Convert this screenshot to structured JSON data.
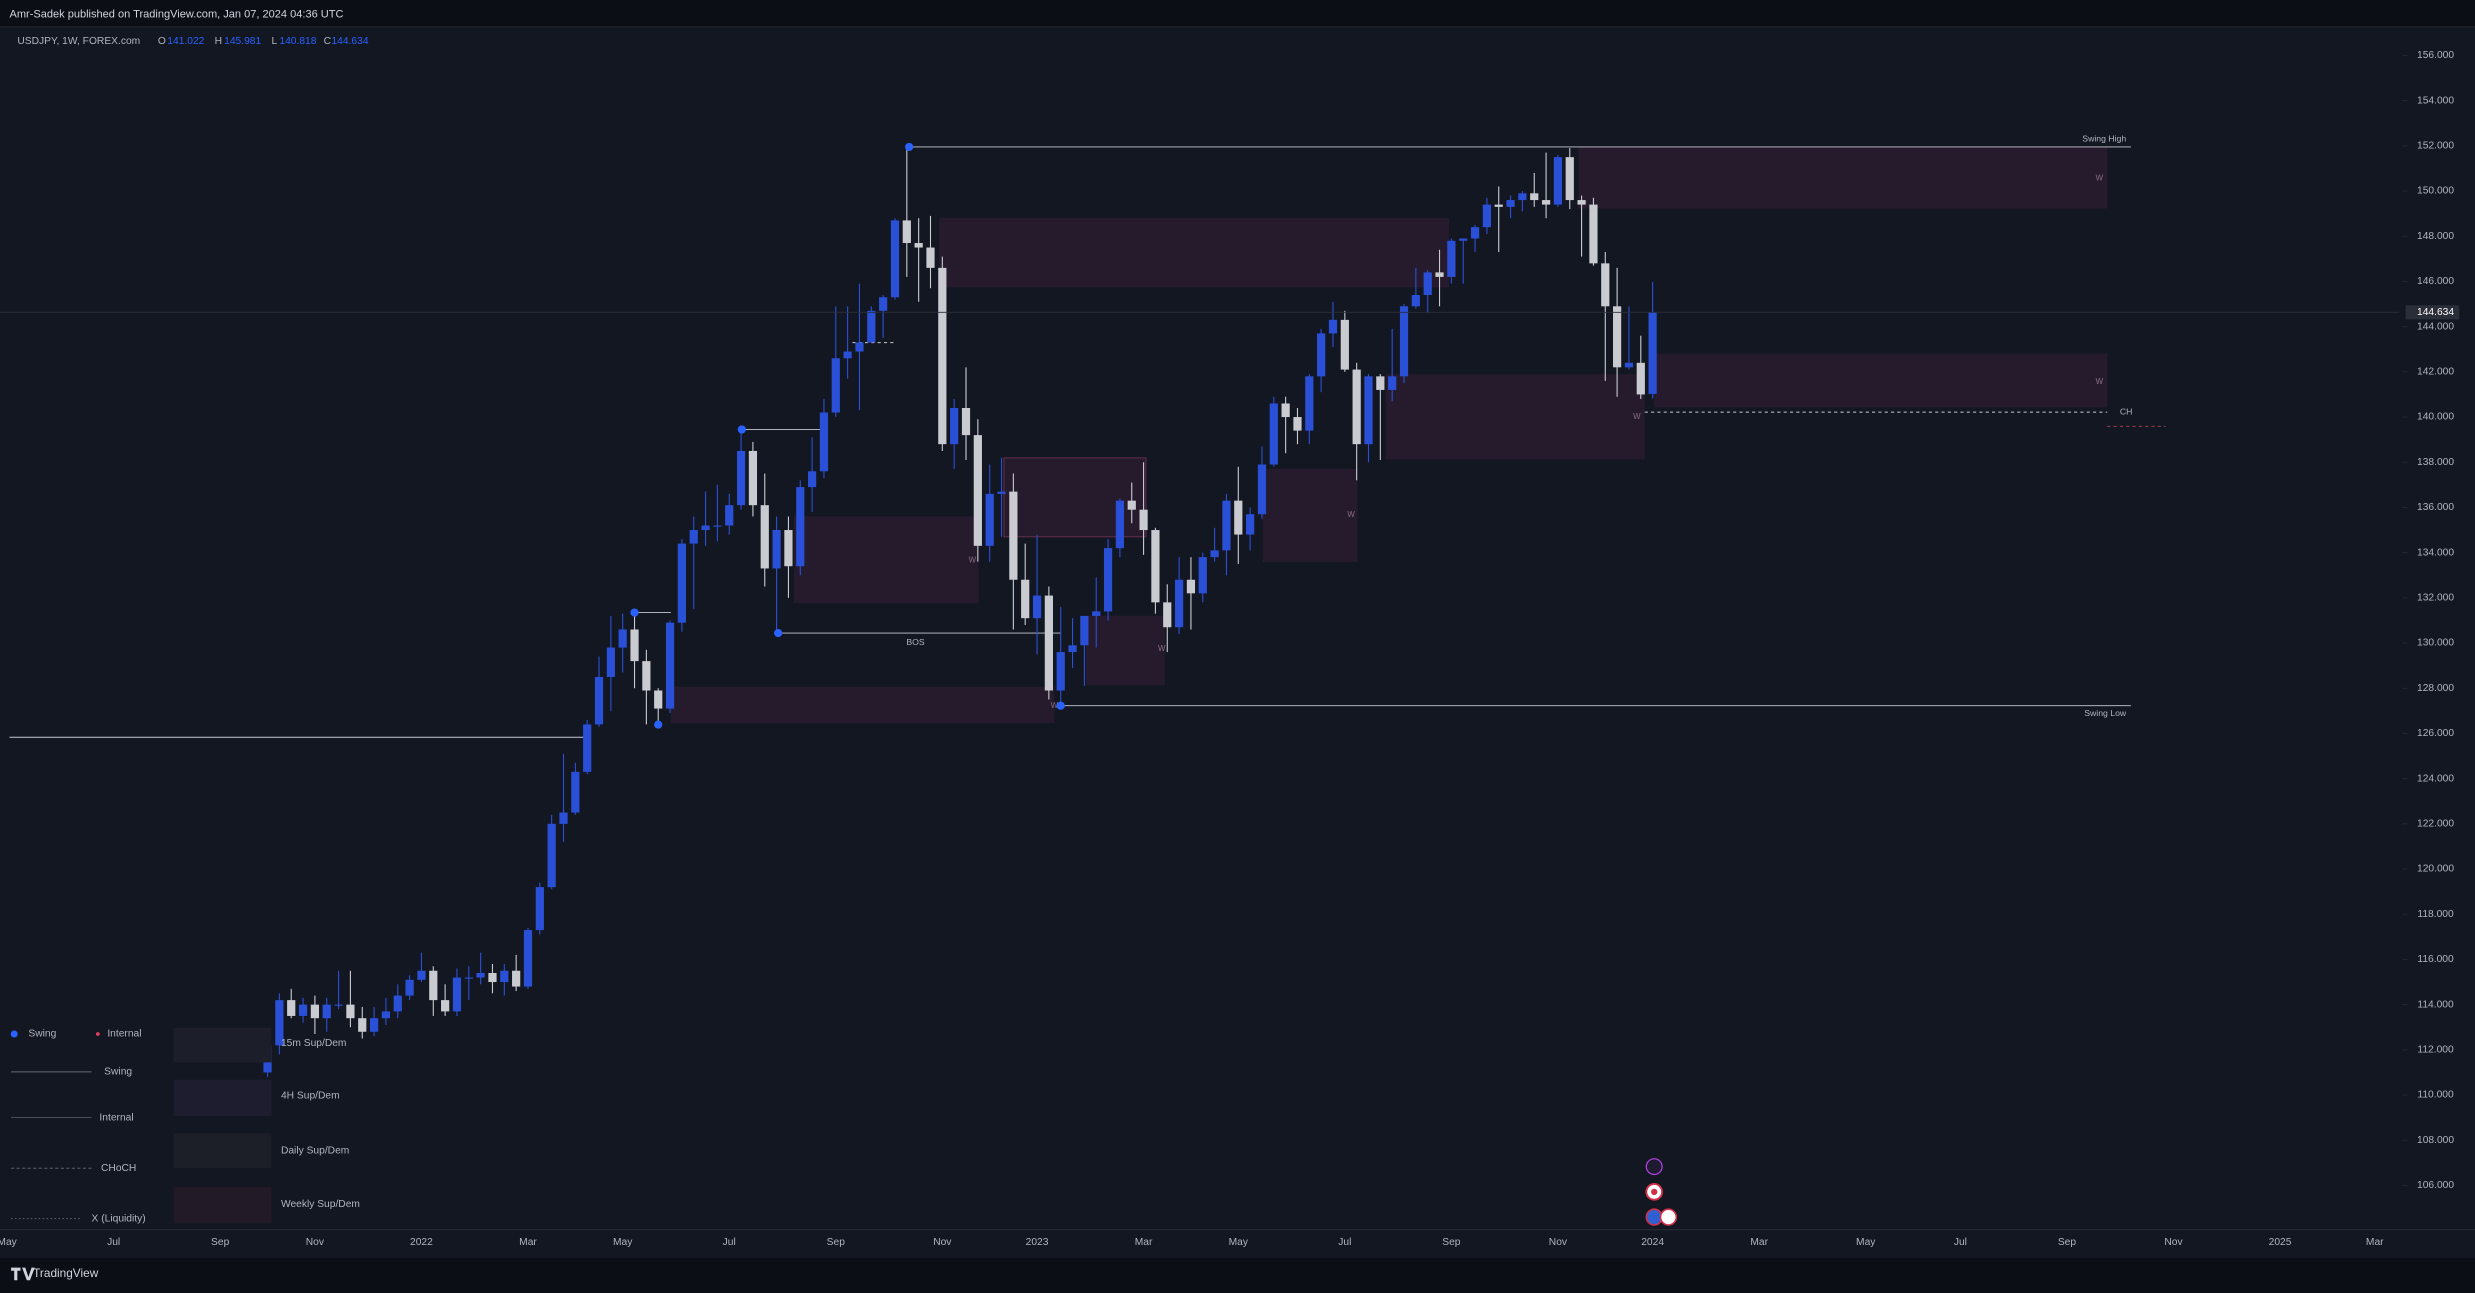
{
  "header": {
    "publisher": "Amr-Sadek published on TradingView.com, Jan 07, 2024 04:36 UTC",
    "symbol": "USDJPY, 1W, FOREX.com",
    "ohlc_labels": [
      "O",
      "H",
      "L",
      "C"
    ]
  },
  "chart_data": {
    "type": "candlestick",
    "up_color": "#2b50d8",
    "down_color": "#c9cbd1",
    "background": "#131722",
    "categories": [
      "May",
      null,
      null,
      null,
      null,
      null,
      null,
      null,
      null,
      "Jul",
      null,
      null,
      null,
      null,
      null,
      null,
      null,
      null,
      "Sep",
      null,
      null,
      null,
      null,
      null,
      null,
      null,
      "Nov",
      null,
      null,
      null,
      null,
      null,
      null,
      null,
      null,
      "2022",
      null,
      null,
      null,
      null,
      null,
      null,
      null,
      null,
      "Mar",
      null,
      null,
      null,
      null,
      null,
      null,
      null,
      "May",
      null,
      null,
      null,
      null,
      null,
      null,
      null,
      null,
      "Jul",
      null,
      null,
      null,
      null,
      null,
      null,
      null,
      null,
      "Sep",
      null,
      null,
      null,
      null,
      null,
      null,
      null,
      null,
      "Nov",
      null,
      null,
      null,
      null,
      null,
      null,
      null,
      "2023",
      null,
      null,
      null,
      null,
      null,
      null,
      null,
      null,
      "Mar",
      null,
      null,
      null,
      null,
      null,
      null,
      null,
      "May",
      null,
      null,
      null,
      null,
      null,
      null,
      null,
      null,
      "Jul",
      null,
      null,
      null,
      null,
      null,
      null,
      null,
      null,
      "Sep",
      null,
      null,
      null,
      null,
      null,
      null,
      null,
      null,
      "Nov",
      null,
      null,
      null,
      null,
      null,
      null,
      null,
      "2024",
      null,
      null,
      null,
      null,
      null,
      null,
      null,
      null,
      "Mar",
      null,
      null,
      null,
      null,
      null,
      null,
      null,
      null,
      "May",
      null,
      null,
      null,
      null,
      null,
      null,
      null,
      "Jul",
      null,
      null,
      null,
      null,
      null,
      null,
      null,
      null,
      "Sep",
      null,
      null,
      null,
      null,
      null,
      null,
      null,
      null,
      "Nov",
      null,
      null,
      null,
      null,
      null,
      null,
      null,
      null,
      "2025",
      null,
      null,
      null,
      null,
      null,
      null,
      null,
      "Mar",
      null
    ],
    "open": [
      null,
      null,
      null,
      null,
      null,
      null,
      null,
      null,
      null,
      null,
      null,
      null,
      null,
      null,
      null,
      null,
      null,
      null,
      null,
      null,
      null,
      null,
      111.0,
      112.2,
      114.2,
      113.5,
      114.0,
      113.4,
      114.0,
      114.0,
      113.4,
      112.8,
      113.4,
      113.7,
      114.4,
      115.1,
      115.5,
      114.2,
      113.7,
      115.2,
      115.2,
      115.4,
      115.0,
      115.5,
      114.8,
      117.3,
      119.2,
      122.0,
      122.5,
      124.3,
      126.4,
      128.5,
      129.8,
      130.6,
      129.2,
      127.9,
      127.1,
      130.9,
      134.4,
      135.0,
      135.2,
      135.2,
      136.1,
      138.5,
      136.1,
      133.3,
      135.0,
      133.4,
      136.9,
      137.6,
      140.2,
      142.6,
      142.9,
      143.3,
      144.7,
      145.3,
      148.7,
      147.7,
      147.5,
      146.6,
      138.8,
      140.4,
      139.2,
      134.3,
      136.6,
      136.7,
      132.8,
      131.1,
      132.1,
      127.9,
      129.6,
      129.9,
      131.2,
      131.4,
      134.2,
      136.3,
      135.9,
      135.0,
      131.8,
      130.7,
      132.8,
      132.2,
      133.8,
      134.1,
      136.3,
      134.8,
      135.7,
      137.9,
      140.6,
      140.0,
      139.4,
      141.8,
      143.7,
      144.3,
      142.1,
      138.8,
      141.8,
      141.2,
      141.8,
      144.9,
      145.4,
      146.4,
      146.2,
      147.8,
      147.9,
      148.4,
      149.4,
      149.3,
      149.6,
      149.9,
      149.6,
      149.4,
      151.5,
      149.6,
      149.4,
      146.8,
      144.9,
      142.2,
      142.4,
      141.022,
      null,
      null,
      null,
      null,
      null,
      null,
      null,
      null,
      null,
      null,
      null,
      null,
      null,
      null,
      null,
      null,
      null,
      null,
      null,
      null,
      null,
      null,
      null,
      null,
      null,
      null,
      null,
      null,
      null,
      null,
      null,
      null,
      null,
      null,
      null,
      null,
      null,
      null,
      null,
      null,
      null,
      null,
      null,
      null,
      null,
      null,
      null,
      null,
      null,
      null,
      null,
      null,
      null,
      null,
      null,
      null,
      null,
      null,
      null,
      null,
      null,
      null
    ],
    "high": [
      null,
      null,
      null,
      null,
      null,
      null,
      null,
      null,
      null,
      null,
      null,
      null,
      null,
      null,
      null,
      null,
      null,
      null,
      null,
      null,
      null,
      null,
      112.5,
      114.5,
      114.7,
      114.3,
      114.4,
      114.3,
      115.5,
      115.5,
      113.9,
      113.9,
      114.3,
      114.9,
      115.3,
      116.3,
      115.7,
      114.9,
      115.6,
      115.7,
      116.3,
      115.8,
      115.8,
      116.2,
      117.4,
      119.4,
      122.4,
      125.1,
      124.7,
      126.6,
      129.4,
      131.2,
      131.3,
      131.3,
      129.7,
      128.0,
      131.0,
      134.6,
      135.6,
      136.7,
      137.0,
      136.6,
      139.4,
      138.9,
      137.5,
      135.6,
      135.6,
      137.2,
      139.1,
      140.8,
      144.9,
      144.9,
      145.9,
      144.9,
      145.4,
      148.8,
      151.9,
      148.8,
      148.9,
      147.1,
      140.8,
      142.2,
      139.9,
      137.9,
      138.2,
      137.5,
      134.4,
      134.8,
      132.5,
      131.6,
      131.1,
      131.2,
      132.9,
      134.6,
      136.4,
      137.1,
      138.0,
      135.1,
      132.6,
      133.8,
      133.8,
      134.0,
      135.1,
      136.6,
      137.8,
      136.0,
      138.7,
      140.9,
      140.9,
      140.4,
      141.9,
      143.9,
      145.1,
      144.7,
      142.4,
      141.9,
      141.9,
      143.9,
      145.0,
      146.6,
      146.5,
      147.4,
      147.9,
      147.9,
      148.5,
      149.7,
      150.2,
      149.8,
      150.0,
      150.8,
      151.7,
      151.6,
      151.9,
      149.8,
      149.7,
      147.3,
      146.6,
      144.9,
      143.6,
      145.981,
      null,
      null,
      null,
      null,
      null,
      null,
      null,
      null,
      null,
      null,
      null,
      null,
      null,
      null,
      null,
      null,
      null,
      null,
      null,
      null,
      null,
      null,
      null,
      null,
      null,
      null,
      null,
      null,
      null,
      null,
      null,
      null,
      null,
      null,
      null,
      null,
      null,
      null,
      null,
      null,
      null,
      null,
      null,
      null,
      null,
      null,
      null,
      null,
      null,
      null,
      null,
      null,
      null,
      null,
      null,
      null,
      null,
      null,
      null,
      null,
      null,
      null
    ],
    "low": [
      null,
      null,
      null,
      null,
      null,
      null,
      null,
      null,
      null,
      null,
      null,
      null,
      null,
      null,
      null,
      null,
      null,
      null,
      null,
      null,
      null,
      null,
      110.8,
      111.8,
      113.4,
      113.2,
      112.7,
      112.8,
      113.8,
      113.0,
      112.5,
      112.6,
      113.1,
      113.4,
      114.2,
      115.0,
      113.5,
      113.5,
      113.5,
      114.2,
      114.9,
      114.5,
      114.4,
      114.6,
      114.7,
      117.1,
      119.1,
      121.2,
      122.4,
      124.2,
      126.3,
      127.0,
      128.7,
      128.0,
      126.4,
      126.4,
      126.9,
      130.5,
      131.5,
      134.3,
      134.5,
      134.8,
      135.9,
      135.6,
      132.5,
      130.4,
      132.0,
      133.0,
      135.8,
      137.3,
      140.0,
      141.7,
      140.3,
      143.3,
      143.5,
      145.2,
      146.2,
      145.1,
      145.7,
      138.5,
      137.7,
      138.1,
      133.6,
      133.6,
      134.7,
      130.6,
      130.8,
      129.5,
      127.5,
      127.2,
      128.9,
      128.1,
      129.8,
      131.0,
      133.8,
      135.3,
      133.9,
      131.3,
      129.6,
      130.4,
      130.6,
      131.8,
      133.6,
      133.0,
      133.5,
      134.1,
      135.5,
      137.8,
      138.4,
      138.8,
      138.8,
      141.1,
      143.1,
      142.0,
      137.2,
      138.0,
      138.1,
      140.7,
      141.5,
      144.8,
      144.6,
      144.9,
      145.9,
      145.9,
      147.3,
      148.1,
      147.3,
      148.8,
      149.1,
      149.3,
      148.8,
      149.3,
      149.2,
      147.1,
      146.7,
      141.6,
      140.9,
      142.1,
      140.8,
      140.818,
      null,
      null,
      null,
      null,
      null,
      null,
      null,
      null,
      null,
      null,
      null,
      null,
      null,
      null,
      null,
      null,
      null,
      null,
      null,
      null,
      null,
      null,
      null,
      null,
      null,
      null,
      null,
      null,
      null,
      null,
      null,
      null,
      null,
      null,
      null,
      null,
      null,
      null,
      null,
      null,
      null,
      null,
      null,
      null,
      null,
      null,
      null,
      null,
      null,
      null,
      null,
      null,
      null,
      null,
      null,
      null,
      null,
      null,
      null,
      null,
      null,
      null
    ],
    "close": [
      null,
      null,
      null,
      null,
      null,
      null,
      null,
      null,
      null,
      null,
      null,
      null,
      null,
      null,
      null,
      null,
      null,
      null,
      null,
      null,
      null,
      null,
      112.2,
      114.2,
      113.5,
      114.0,
      113.4,
      114.0,
      114.0,
      113.4,
      112.8,
      113.4,
      113.7,
      114.4,
      115.1,
      115.5,
      114.2,
      113.7,
      115.2,
      115.2,
      115.4,
      115.0,
      115.5,
      114.8,
      117.3,
      119.2,
      122.0,
      122.5,
      124.3,
      126.4,
      128.5,
      129.8,
      130.6,
      129.2,
      127.9,
      127.1,
      130.9,
      134.4,
      135.0,
      135.2,
      135.2,
      136.1,
      138.5,
      136.1,
      133.3,
      135.0,
      133.4,
      136.9,
      137.6,
      140.2,
      142.6,
      142.9,
      143.3,
      144.7,
      145.3,
      148.7,
      147.7,
      147.5,
      146.6,
      138.8,
      140.4,
      139.2,
      134.3,
      136.6,
      136.7,
      132.8,
      131.1,
      132.1,
      127.9,
      129.6,
      129.9,
      131.2,
      131.4,
      134.2,
      136.3,
      135.9,
      135.0,
      131.8,
      130.7,
      132.8,
      132.2,
      133.8,
      134.1,
      136.3,
      134.8,
      135.7,
      137.9,
      140.6,
      140.0,
      139.4,
      141.8,
      143.7,
      144.3,
      142.1,
      138.8,
      141.8,
      141.2,
      141.8,
      144.9,
      145.4,
      146.4,
      146.2,
      147.8,
      147.9,
      148.4,
      149.4,
      149.3,
      149.6,
      149.9,
      149.6,
      149.4,
      151.5,
      149.6,
      149.4,
      146.8,
      144.9,
      142.2,
      142.4,
      141.0,
      144.634,
      null,
      null,
      null,
      null,
      null,
      null,
      null,
      null,
      null,
      null,
      null,
      null,
      null,
      null,
      null,
      null,
      null,
      null,
      null,
      null,
      null,
      null,
      null,
      null,
      null,
      null,
      null,
      null,
      null,
      null,
      null,
      null,
      null,
      null,
      null,
      null,
      null,
      null,
      null,
      null,
      null,
      null,
      null,
      null,
      null,
      null,
      null,
      null,
      null,
      null,
      null,
      null,
      null,
      null,
      null,
      null,
      null,
      null,
      null,
      null,
      null,
      null
    ],
    "ylim": [
      104.04,
      157.26
    ],
    "yticks": [
      {
        "value": 106,
        "label": "106.000"
      },
      {
        "value": 108,
        "label": "108.000"
      },
      {
        "value": 110,
        "label": "110.000"
      },
      {
        "value": 112,
        "label": "112.000"
      },
      {
        "value": 114,
        "label": "114.000"
      },
      {
        "value": 116,
        "label": "116.000"
      },
      {
        "value": 118,
        "label": "118.000"
      },
      {
        "value": 120,
        "label": "120.000"
      },
      {
        "value": 122,
        "label": "122.000"
      },
      {
        "value": 124,
        "label": "124.000"
      },
      {
        "value": 126,
        "label": "126.000"
      },
      {
        "value": 128,
        "label": "128.000"
      },
      {
        "value": 130,
        "label": "130.000"
      },
      {
        "value": 132,
        "label": "132.000"
      },
      {
        "value": 134,
        "label": "134.000"
      },
      {
        "value": 136,
        "label": "136.000"
      },
      {
        "value": 138,
        "label": "138.000"
      },
      {
        "value": 140,
        "label": "140.000"
      },
      {
        "value": 142,
        "label": "142.000"
      },
      {
        "value": 144,
        "label": "144.000"
      },
      {
        "value": 146,
        "label": "146.000"
      },
      {
        "value": 148,
        "label": "148.000"
      },
      {
        "value": 150,
        "label": "150.000"
      },
      {
        "value": 152,
        "label": "152.000"
      },
      {
        "value": 154,
        "label": "154.000"
      },
      {
        "value": 156,
        "label": "156.000"
      }
    ],
    "grid": false
  },
  "annotations": {
    "swing_high": "Swing High",
    "swing_low": "Swing Low",
    "bos": "BOS",
    "choch": "CH",
    "weak": "W"
  },
  "legend_panel": {
    "swing_dot": "Swing",
    "internal_dot": "Internal",
    "swing_line": "Swing",
    "internal_line": "Internal",
    "choch_line": "CHoCH",
    "liquidity_line": "X (Liquidity)",
    "zones": [
      "15m Sup/Dem",
      "4H Sup/Dem",
      "Daily Sup/Dem",
      "Weekly Sup/Dem"
    ]
  },
  "footer": {
    "brand": "TradingView"
  }
}
